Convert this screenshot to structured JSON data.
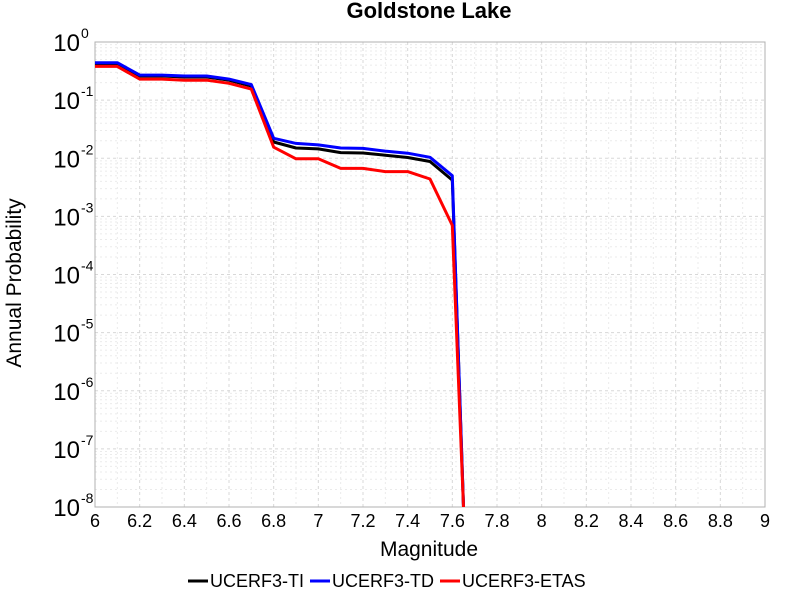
{
  "chart_data": {
    "type": "line",
    "title": "Goldstone Lake",
    "xlabel": "Magnitude",
    "ylabel": "Annual Probability",
    "xlim": [
      6,
      9
    ],
    "ylim": [
      1e-08,
      1
    ],
    "yscale": "log",
    "grid": true,
    "legend_position": "bottom",
    "x_ticks": [
      "6",
      "6.2",
      "6.4",
      "6.6",
      "6.8",
      "7",
      "7.2",
      "7.4",
      "7.6",
      "7.8",
      "8",
      "8.2",
      "8.4",
      "8.6",
      "8.8",
      "9"
    ],
    "y_ticks": [
      {
        "base": "10",
        "exp": "0",
        "value": 1
      },
      {
        "base": "10",
        "exp": "-1",
        "value": 0.1
      },
      {
        "base": "10",
        "exp": "-2",
        "value": 0.01
      },
      {
        "base": "10",
        "exp": "-3",
        "value": 0.001
      },
      {
        "base": "10",
        "exp": "-4",
        "value": 0.0001
      },
      {
        "base": "10",
        "exp": "-5",
        "value": 1e-05
      },
      {
        "base": "10",
        "exp": "-6",
        "value": 1e-06
      },
      {
        "base": "10",
        "exp": "-7",
        "value": 1e-07
      },
      {
        "base": "10",
        "exp": "-8",
        "value": 1e-08
      }
    ],
    "x": [
      6.0,
      6.1,
      6.2,
      6.3,
      6.4,
      6.5,
      6.6,
      6.7,
      6.8,
      6.9,
      7.0,
      7.1,
      7.2,
      7.3,
      7.4,
      7.5,
      7.6,
      7.65
    ],
    "series": [
      {
        "name": "UCERF3-TI",
        "color": "#000000",
        "values": [
          0.41,
          0.41,
          0.26,
          0.26,
          0.25,
          0.25,
          0.22,
          0.175,
          0.019,
          0.015,
          0.0145,
          0.0125,
          0.0123,
          0.0113,
          0.0103,
          0.0088,
          0.0042,
          1e-08
        ]
      },
      {
        "name": "UCERF3-TD",
        "color": "#0000ff",
        "values": [
          0.44,
          0.44,
          0.27,
          0.27,
          0.26,
          0.26,
          0.23,
          0.185,
          0.022,
          0.018,
          0.017,
          0.015,
          0.0148,
          0.0133,
          0.0122,
          0.0104,
          0.005,
          1e-08
        ]
      },
      {
        "name": "UCERF3-ETAS",
        "color": "#ff0000",
        "values": [
          0.38,
          0.38,
          0.23,
          0.23,
          0.22,
          0.22,
          0.195,
          0.155,
          0.0155,
          0.0098,
          0.0098,
          0.0067,
          0.0067,
          0.0059,
          0.0059,
          0.0044,
          0.0007,
          1e-08
        ]
      }
    ]
  }
}
